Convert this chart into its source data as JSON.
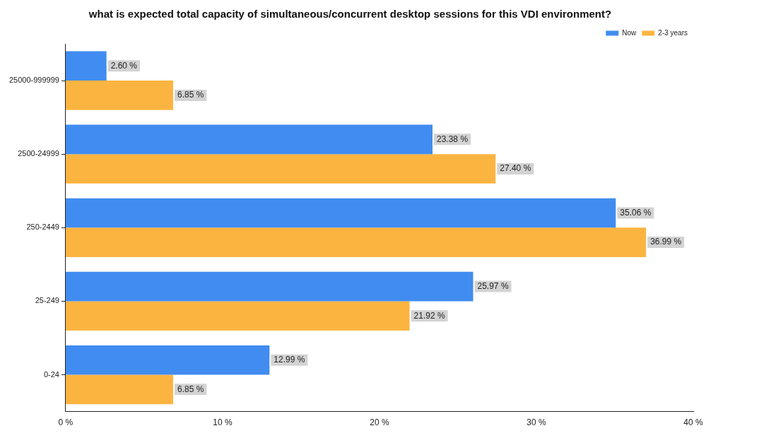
{
  "chart_data": {
    "type": "bar",
    "orientation": "horizontal",
    "title": "what is expected total capacity of simultaneous/concurrent desktop sessions for this VDI environment?",
    "categories": [
      "25000-999999",
      "2500-24999",
      "250-2449",
      "25-249",
      "0-24"
    ],
    "series": [
      {
        "name": "Now",
        "color": "#418cf0",
        "values": [
          2.6,
          23.38,
          35.06,
          25.97,
          12.99
        ],
        "value_labels": [
          "2.60 %",
          "23.38 %",
          "35.06 %",
          "25.97 %",
          "12.99 %"
        ]
      },
      {
        "name": "2-3 years",
        "color": "#fcb441",
        "values": [
          6.85,
          27.4,
          36.99,
          21.92,
          6.85
        ],
        "value_labels": [
          "6.85 %",
          "27.40 %",
          "36.99 %",
          "21.92 %",
          "6.85 %"
        ]
      }
    ],
    "xlim": [
      0,
      40
    ],
    "xticks": [
      {
        "value": 0,
        "label": "0 %"
      },
      {
        "value": 10,
        "label": "10 %"
      },
      {
        "value": 20,
        "label": "20 %"
      },
      {
        "value": 30,
        "label": "30 %"
      },
      {
        "value": 40,
        "label": "40 %"
      }
    ],
    "grid": false,
    "legend": "top right"
  }
}
